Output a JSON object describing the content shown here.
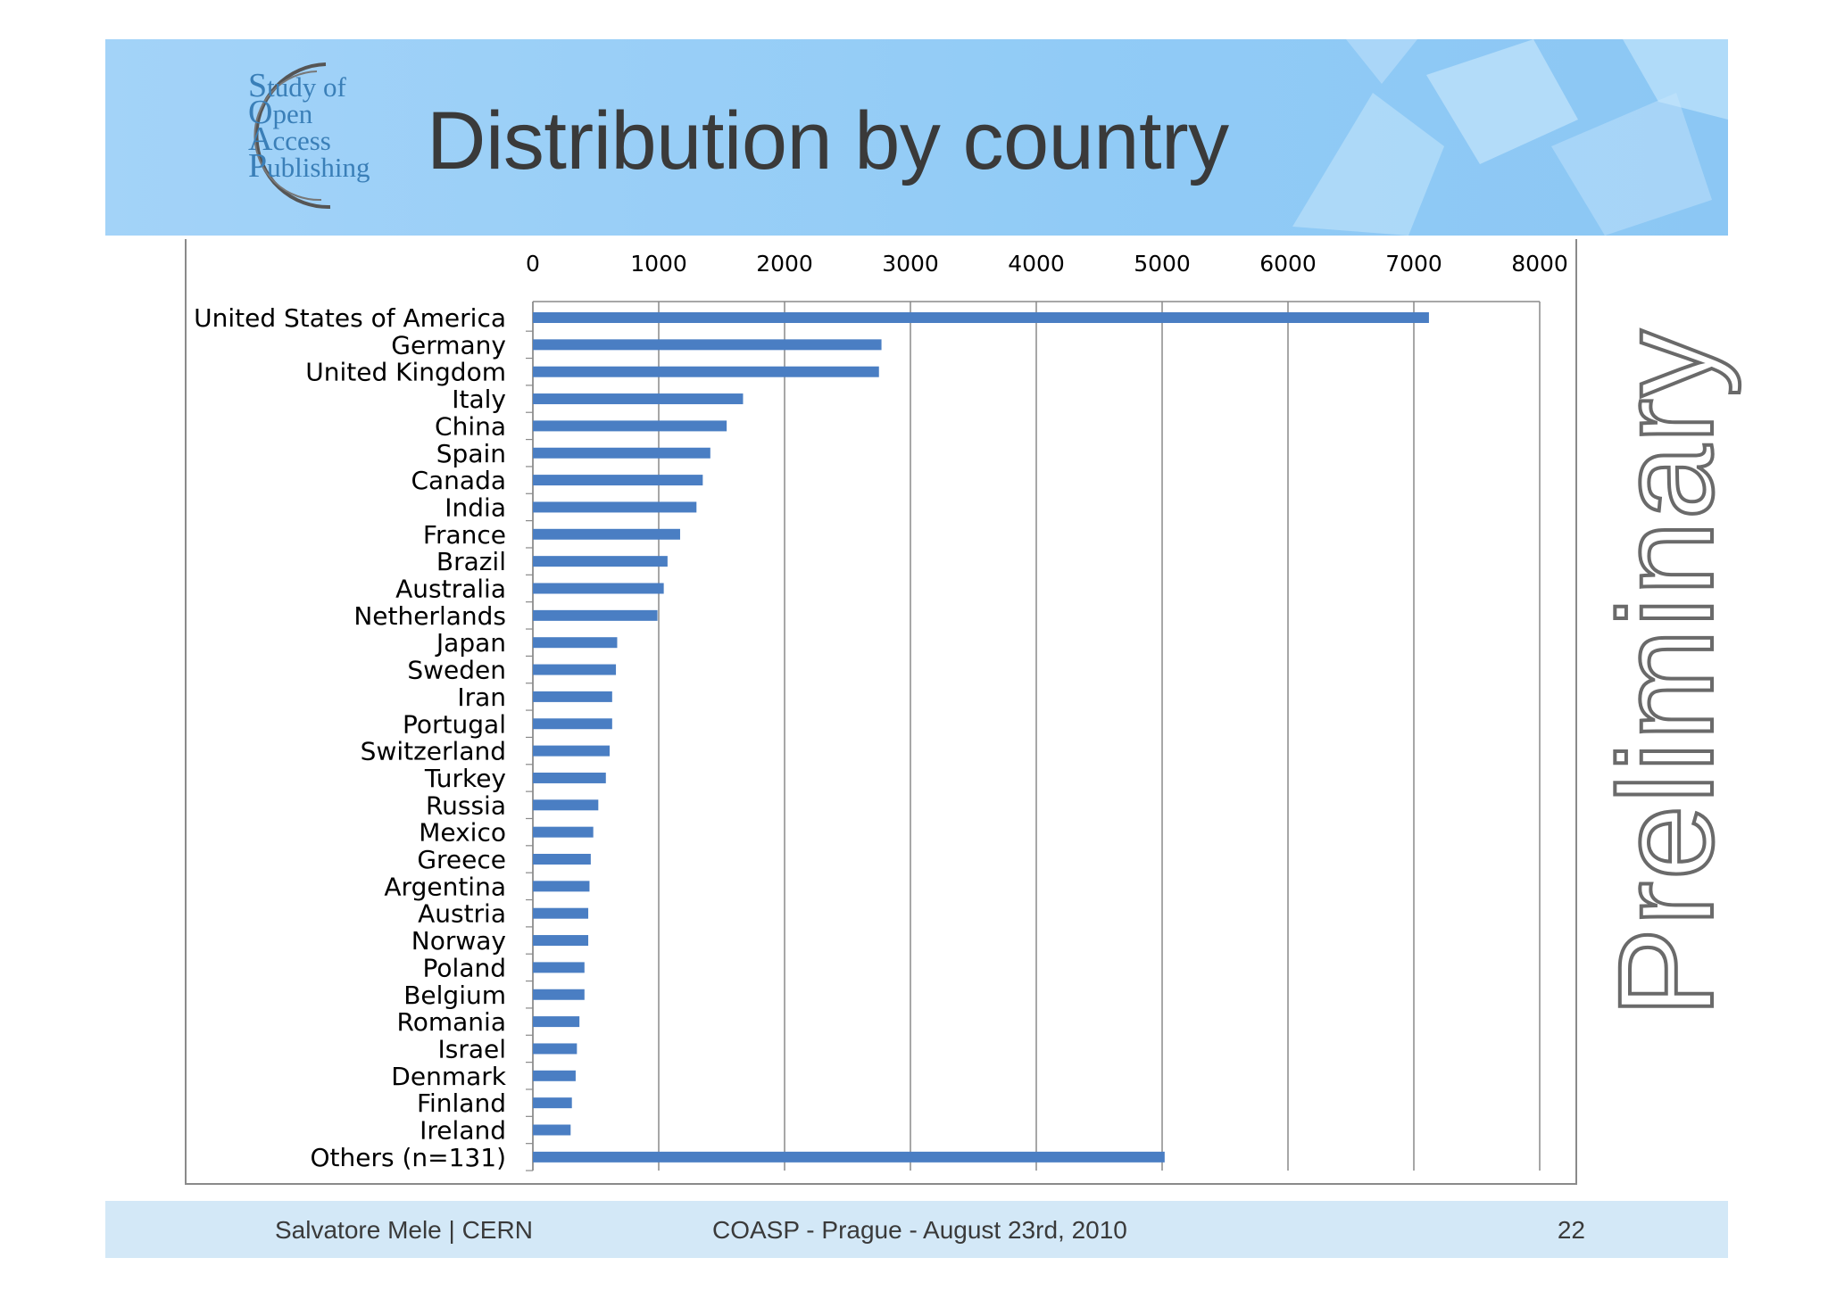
{
  "slide": {
    "title": "Distribution by country",
    "logo": {
      "line1_initial": "S",
      "line1_rest": "tudy of",
      "line2_initial": "O",
      "line2_rest": "pen",
      "line3_initial": "A",
      "line3_rest": "ccess",
      "line4_initial": "P",
      "line4_rest": "ublishing"
    },
    "watermark": "Preliminary",
    "footer": {
      "left": "Salvatore Mele | CERN",
      "center": "COASP - Prague - August 23rd, 2010",
      "page": "22"
    }
  },
  "chart_data": {
    "type": "bar",
    "orientation": "horizontal",
    "title": "",
    "xlabel": "",
    "ylabel": "",
    "xlim": [
      0,
      8000
    ],
    "x_ticks": [
      0,
      1000,
      2000,
      3000,
      4000,
      5000,
      6000,
      7000,
      8000
    ],
    "axis_position": "top",
    "grid": true,
    "bar_color": "#4a7ec3",
    "categories": [
      "United States of America",
      "Germany",
      "United Kingdom",
      "Italy",
      "China",
      "Spain",
      "Canada",
      "India",
      "France",
      "Brazil",
      "Australia",
      "Netherlands",
      "Japan",
      "Sweden",
      "Iran",
      "Portugal",
      "Switzerland",
      "Turkey",
      "Russia",
      "Mexico",
      "Greece",
      "Argentina",
      "Austria",
      "Norway",
      "Poland",
      "Belgium",
      "Romania",
      "Israel",
      "Denmark",
      "Finland",
      "Ireland",
      "Others (n=131)"
    ],
    "values": [
      7120,
      2770,
      2750,
      1670,
      1540,
      1410,
      1350,
      1300,
      1170,
      1070,
      1040,
      990,
      670,
      660,
      630,
      630,
      610,
      580,
      520,
      480,
      460,
      450,
      440,
      440,
      410,
      410,
      370,
      350,
      340,
      310,
      300,
      5020
    ]
  }
}
